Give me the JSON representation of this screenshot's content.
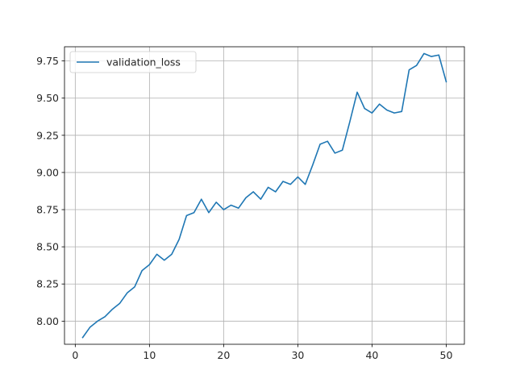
{
  "chart_data": {
    "type": "line",
    "title": "",
    "xlabel": "",
    "ylabel": "",
    "xlim": [
      -1.45,
      52.45
    ],
    "ylim": [
      7.8445,
      9.8455
    ],
    "xticks": [
      0,
      10,
      20,
      30,
      40,
      50
    ],
    "yticks": [
      8.0,
      8.25,
      8.5,
      8.75,
      9.0,
      9.25,
      9.5,
      9.75
    ],
    "ytick_labels": [
      "8.00",
      "8.25",
      "8.50",
      "8.75",
      "9.00",
      "9.25",
      "9.50",
      "9.75"
    ],
    "grid": true,
    "legend_position": "upper-left",
    "series": [
      {
        "name": "validation_loss",
        "color": "#1f77b4",
        "x": [
          1,
          2,
          3,
          4,
          5,
          6,
          7,
          8,
          9,
          10,
          11,
          12,
          13,
          14,
          15,
          16,
          17,
          18,
          19,
          20,
          21,
          22,
          23,
          24,
          25,
          26,
          27,
          28,
          29,
          30,
          31,
          32,
          33,
          34,
          35,
          36,
          37,
          38,
          39,
          40,
          41,
          42,
          43,
          44,
          45,
          46,
          47,
          48,
          49,
          50
        ],
        "y": [
          7.89,
          7.96,
          8.0,
          8.03,
          8.08,
          8.12,
          8.19,
          8.23,
          8.34,
          8.38,
          8.45,
          8.41,
          8.45,
          8.55,
          8.71,
          8.73,
          8.82,
          8.73,
          8.8,
          8.75,
          8.78,
          8.76,
          8.83,
          8.87,
          8.82,
          8.9,
          8.87,
          8.94,
          8.92,
          8.97,
          8.92,
          9.05,
          9.19,
          9.21,
          9.13,
          9.15,
          9.34,
          9.54,
          9.43,
          9.4,
          9.46,
          9.42,
          9.4,
          9.41,
          9.69,
          9.72,
          9.8,
          9.78,
          9.79,
          9.61
        ]
      }
    ]
  }
}
